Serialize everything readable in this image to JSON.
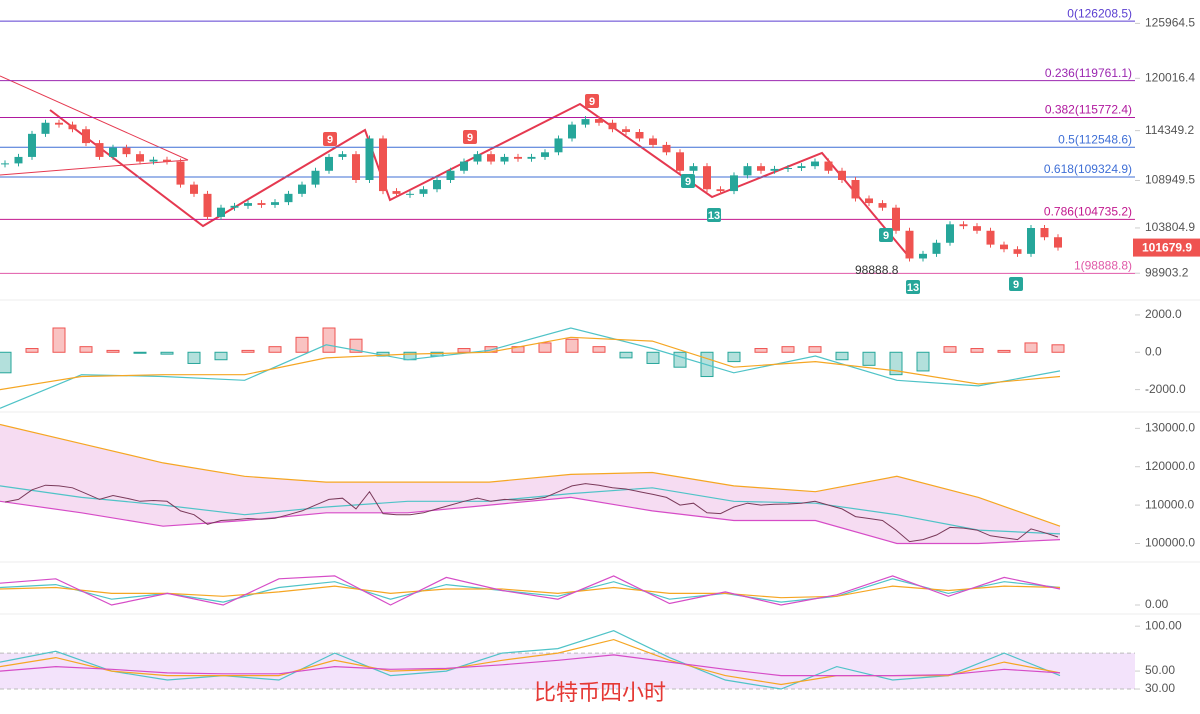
{
  "chart_data": [
    {
      "type": "candlestick",
      "values": [
        110800,
        111500,
        114000,
        115200,
        115000,
        114500,
        113000,
        111500,
        112500,
        111800,
        111000,
        111200,
        111000,
        108500,
        107500,
        105000,
        106000,
        106200,
        106500,
        106300,
        106600,
        107500,
        108500,
        110000,
        111500,
        111800,
        109000,
        113500,
        107800,
        107500,
        107500,
        108000,
        109000,
        110000,
        111000,
        111800,
        111000,
        111500,
        111300,
        111500,
        112000,
        113500,
        115000,
        115600,
        115200,
        114500,
        114200,
        113500,
        112800,
        112000,
        110000,
        110500,
        108000,
        107800,
        109500,
        110500,
        110000,
        110200,
        110300,
        110500,
        111000,
        110000,
        109000,
        107000,
        106500,
        106000,
        103500,
        100500,
        101000,
        102200,
        104200,
        104000,
        103500,
        102000,
        101500,
        101000,
        103800,
        102800,
        101680
      ],
      "up_color": "#26a69a",
      "down_color": "#ef5350",
      "ylim": [
        96000,
        128500
      ],
      "yticks": [
        125964.5,
        120016.4,
        114349.2,
        108949.5,
        103804.9,
        98903.2
      ],
      "levels": [
        {
          "value": 126208.5,
          "label": "0(126208.5)",
          "color": "#5b3fd1"
        },
        {
          "value": 119761.1,
          "label": "0.236(119761.1)",
          "color": "#9c27b0"
        },
        {
          "value": 115772.4,
          "label": "0.382(115772.4)",
          "color": "#b0189e"
        },
        {
          "value": 112548.6,
          "label": "0.5(112548.6)",
          "color": "#3f6fd6"
        },
        {
          "value": 109324.9,
          "label": "0.618(109324.9)",
          "color": "#3f6fd6"
        },
        {
          "value": 104735.2,
          "label": "0.786(104735.2)",
          "color": "#c2188e"
        },
        {
          "value": 98888.8,
          "label": "1(98888.8)",
          "color": "#e05aa8"
        }
      ],
      "current_price": 101679.9,
      "annotations": [
        "9",
        "9",
        "9",
        "9",
        "13",
        "9",
        "13",
        "9",
        "98888.8"
      ],
      "watermark": "比特币四小时"
    },
    {
      "type": "bar",
      "values": [
        -1100,
        200,
        1300,
        300,
        100,
        -50,
        -100,
        -600,
        -400,
        100,
        300,
        800,
        1300,
        700,
        -200,
        -400,
        -200,
        200,
        300,
        300,
        500,
        700,
        300,
        -300,
        -600,
        -800,
        -1300,
        -500,
        200,
        300,
        300,
        -400,
        -700,
        -1200,
        -1000,
        300,
        200,
        100,
        500,
        400
      ],
      "up_color": "#ef5350",
      "down_color": "#26a69a",
      "series": [
        {
          "color": "#4fc3c7",
          "values": [
            -3000,
            -1200,
            -1300,
            -1500,
            400,
            -400,
            100,
            1300,
            200,
            -1100,
            -200,
            -1500,
            -1800,
            -1000
          ]
        },
        {
          "color": "#f5a623",
          "values": [
            -2000,
            -1300,
            -1200,
            -1200,
            -300,
            -100,
            0,
            800,
            600,
            -800,
            -500,
            -1000,
            -1700,
            -1300
          ]
        }
      ],
      "ylim": [
        -3200,
        2800
      ],
      "yticks": [
        {
          "value": 2000,
          "label": "2000.0"
        },
        {
          "value": 0,
          "label": "0.0"
        },
        {
          "value": -2000,
          "label": "-2000.0"
        }
      ]
    },
    {
      "type": "line",
      "series": [
        {
          "color": "#f5a623",
          "values": [
            131000,
            126000,
            121000,
            117500,
            116000,
            116000,
            116000,
            118000,
            118500,
            115000,
            113500,
            117500,
            112000,
            104500
          ]
        },
        {
          "color": "#4fc3c7",
          "values": [
            115000,
            112000,
            110000,
            107500,
            109500,
            111000,
            111000,
            113000,
            114500,
            111000,
            110500,
            107500,
            103500,
            102500
          ]
        },
        {
          "color": "#d64cc7",
          "values": [
            111000,
            108000,
            104500,
            106000,
            108000,
            108000,
            110000,
            112000,
            108500,
            106000,
            106000,
            100000,
            100000,
            101000
          ]
        }
      ],
      "fill_color": "#f6dcf2",
      "ylim": [
        97000,
        134000
      ],
      "yticks": [
        {
          "value": 130000,
          "label": "130000.0"
        },
        {
          "value": 120000,
          "label": "120000.0"
        },
        {
          "value": 110000,
          "label": "110000.0"
        },
        {
          "value": 100000,
          "label": "100000.0"
        }
      ]
    },
    {
      "type": "line",
      "series": [
        {
          "color": "#4fc3c7",
          "values": [
            60,
            70,
            20,
            40,
            10,
            60,
            80,
            20,
            70,
            50,
            30,
            80,
            20,
            40,
            10,
            30,
            90,
            40,
            80,
            60
          ]
        },
        {
          "color": "#f5a623",
          "values": [
            55,
            60,
            40,
            40,
            30,
            45,
            65,
            40,
            55,
            55,
            40,
            60,
            40,
            40,
            25,
            30,
            65,
            50,
            65,
            60
          ]
        },
        {
          "color": "#d64cc7",
          "values": [
            75,
            90,
            0,
            40,
            0,
            90,
            100,
            0,
            95,
            50,
            20,
            100,
            5,
            45,
            0,
            35,
            100,
            30,
            95,
            55
          ]
        }
      ],
      "ylim": [
        0,
        110
      ],
      "yticks": [
        {
          "value": 0,
          "label": "0.00"
        }
      ]
    },
    {
      "type": "line",
      "series": [
        {
          "color": "#4fc3c7",
          "values": [
            60,
            72,
            50,
            40,
            45,
            40,
            70,
            45,
            50,
            70,
            75,
            95,
            65,
            40,
            30,
            55,
            40,
            45,
            70,
            45
          ]
        },
        {
          "color": "#f5a623",
          "values": [
            55,
            65,
            50,
            45,
            45,
            45,
            62,
            50,
            52,
            62,
            70,
            85,
            62,
            45,
            35,
            45,
            45,
            45,
            60,
            48
          ]
        },
        {
          "color": "#d64cc7",
          "values": [
            50,
            55,
            52,
            48,
            47,
            47,
            55,
            52,
            53,
            57,
            62,
            68,
            60,
            52,
            45,
            45,
            45,
            46,
            52,
            48
          ]
        }
      ],
      "band": [
        30,
        70
      ],
      "band_color": "#f3e3fb",
      "ylim": [
        20,
        108
      ],
      "yticks": [
        {
          "value": 100,
          "label": "100.00"
        },
        {
          "value": 50,
          "label": "50.00"
        },
        {
          "value": 30,
          "label": "30.00"
        }
      ]
    }
  ]
}
